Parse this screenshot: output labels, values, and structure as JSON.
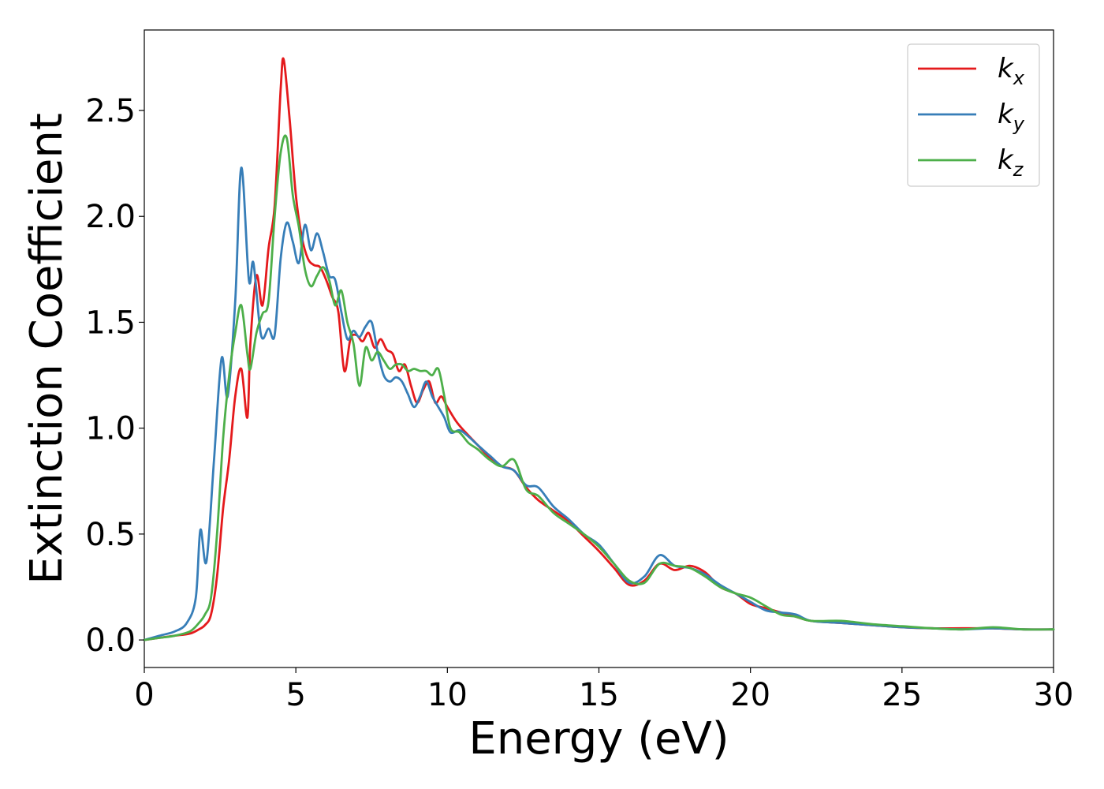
{
  "chart_data": {
    "type": "line",
    "xlabel": "Energy (eV)",
    "ylabel": "Extinction Coefficient",
    "xlim": [
      0,
      30
    ],
    "ylim": [
      -0.13,
      2.88
    ],
    "xticks": [
      0,
      5,
      10,
      15,
      20,
      25,
      30
    ],
    "xtick_labels": [
      "0",
      "5",
      "10",
      "15",
      "20",
      "25",
      "30"
    ],
    "yticks": [
      0.0,
      0.5,
      1.0,
      1.5,
      2.0,
      2.5
    ],
    "ytick_labels": [
      "0.0",
      "0.5",
      "1.0",
      "1.5",
      "2.0",
      "2.5"
    ],
    "grid": false,
    "legend_position": "top-right",
    "series": [
      {
        "name": "k_x",
        "label_main": "k",
        "label_sub": "x",
        "color": "#e41a1c",
        "x": [
          0,
          0.5,
          1.0,
          1.5,
          1.8,
          2.0,
          2.2,
          2.4,
          2.6,
          2.8,
          3.0,
          3.2,
          3.4,
          3.5,
          3.7,
          3.9,
          4.1,
          4.3,
          4.5,
          4.6,
          4.8,
          5.0,
          5.2,
          5.4,
          5.6,
          5.8,
          6.0,
          6.2,
          6.4,
          6.6,
          6.8,
          7.0,
          7.2,
          7.4,
          7.6,
          7.8,
          8.0,
          8.2,
          8.4,
          8.6,
          8.8,
          9.0,
          9.2,
          9.4,
          9.6,
          9.8,
          10.0,
          10.3,
          10.6,
          11.0,
          11.4,
          11.8,
          12.2,
          12.6,
          13.0,
          13.5,
          14.0,
          14.5,
          15.0,
          15.5,
          16.0,
          16.5,
          17.0,
          17.5,
          18.0,
          18.5,
          19.0,
          19.5,
          20.0,
          20.5,
          21.0,
          21.5,
          22.0,
          23.0,
          24.0,
          25.0,
          26.0,
          27.0,
          28.0,
          29.0,
          30.0
        ],
        "values": [
          0.0,
          0.01,
          0.02,
          0.03,
          0.05,
          0.07,
          0.12,
          0.3,
          0.62,
          0.85,
          1.15,
          1.28,
          1.05,
          1.4,
          1.72,
          1.58,
          1.85,
          2.05,
          2.6,
          2.74,
          2.45,
          2.1,
          1.9,
          1.8,
          1.77,
          1.76,
          1.7,
          1.62,
          1.55,
          1.27,
          1.42,
          1.44,
          1.41,
          1.45,
          1.38,
          1.42,
          1.37,
          1.35,
          1.27,
          1.3,
          1.2,
          1.12,
          1.18,
          1.22,
          1.12,
          1.15,
          1.1,
          1.03,
          0.98,
          0.92,
          0.86,
          0.82,
          0.8,
          0.72,
          0.66,
          0.61,
          0.56,
          0.49,
          0.42,
          0.34,
          0.26,
          0.28,
          0.36,
          0.33,
          0.35,
          0.32,
          0.25,
          0.22,
          0.17,
          0.15,
          0.13,
          0.11,
          0.09,
          0.08,
          0.07,
          0.06,
          0.055,
          0.055,
          0.055,
          0.05,
          0.05
        ]
      },
      {
        "name": "k_y",
        "label_main": "k",
        "label_sub": "y",
        "color": "#377eb8",
        "x": [
          0,
          0.5,
          1.0,
          1.4,
          1.7,
          1.85,
          2.05,
          2.3,
          2.55,
          2.75,
          3.0,
          3.2,
          3.45,
          3.6,
          3.85,
          4.1,
          4.3,
          4.5,
          4.7,
          4.9,
          5.1,
          5.3,
          5.5,
          5.7,
          5.9,
          6.1,
          6.3,
          6.5,
          6.7,
          6.9,
          7.1,
          7.3,
          7.5,
          7.7,
          7.9,
          8.1,
          8.3,
          8.5,
          8.7,
          8.9,
          9.1,
          9.3,
          9.5,
          9.7,
          9.9,
          10.1,
          10.4,
          10.7,
          11.0,
          11.4,
          11.8,
          12.2,
          12.6,
          13.0,
          13.5,
          14.0,
          14.5,
          15.0,
          15.5,
          16.0,
          16.5,
          17.0,
          17.5,
          18.0,
          18.5,
          19.0,
          19.5,
          20.0,
          20.5,
          21.0,
          21.5,
          22.0,
          23.0,
          24.0,
          25.0,
          26.0,
          27.0,
          28.0,
          29.0,
          30.0
        ],
        "values": [
          0.0,
          0.02,
          0.04,
          0.08,
          0.2,
          0.52,
          0.37,
          0.85,
          1.33,
          1.15,
          1.6,
          2.23,
          1.7,
          1.78,
          1.44,
          1.47,
          1.44,
          1.8,
          1.97,
          1.88,
          1.78,
          1.96,
          1.84,
          1.92,
          1.83,
          1.72,
          1.7,
          1.55,
          1.42,
          1.46,
          1.43,
          1.48,
          1.5,
          1.36,
          1.25,
          1.22,
          1.24,
          1.22,
          1.16,
          1.1,
          1.15,
          1.22,
          1.15,
          1.1,
          1.05,
          0.98,
          0.99,
          0.96,
          0.92,
          0.87,
          0.82,
          0.8,
          0.73,
          0.72,
          0.63,
          0.57,
          0.5,
          0.45,
          0.36,
          0.27,
          0.3,
          0.4,
          0.35,
          0.34,
          0.31,
          0.26,
          0.22,
          0.18,
          0.14,
          0.13,
          0.12,
          0.09,
          0.08,
          0.07,
          0.06,
          0.055,
          0.05,
          0.055,
          0.05,
          0.05
        ]
      },
      {
        "name": "k_z",
        "label_main": "k",
        "label_sub": "z",
        "color": "#4daf4a",
        "x": [
          0,
          0.5,
          1.0,
          1.5,
          1.8,
          2.0,
          2.2,
          2.4,
          2.6,
          2.8,
          3.0,
          3.2,
          3.4,
          3.5,
          3.7,
          3.9,
          4.1,
          4.3,
          4.5,
          4.7,
          4.9,
          5.1,
          5.3,
          5.5,
          5.7,
          5.9,
          6.1,
          6.3,
          6.5,
          6.7,
          6.9,
          7.1,
          7.3,
          7.5,
          7.7,
          7.9,
          8.1,
          8.3,
          8.5,
          8.7,
          8.9,
          9.1,
          9.3,
          9.5,
          9.7,
          9.9,
          10.1,
          10.4,
          10.7,
          11.0,
          11.4,
          11.8,
          12.2,
          12.6,
          13.0,
          13.5,
          14.0,
          14.5,
          15.0,
          15.5,
          16.0,
          16.5,
          17.0,
          17.5,
          18.0,
          18.5,
          19.0,
          19.5,
          20.0,
          20.5,
          21.0,
          21.5,
          22.0,
          23.0,
          24.0,
          25.0,
          26.0,
          27.0,
          28.0,
          29.0,
          30.0
        ],
        "values": [
          0.0,
          0.01,
          0.02,
          0.04,
          0.08,
          0.12,
          0.2,
          0.5,
          0.95,
          1.25,
          1.45,
          1.58,
          1.35,
          1.28,
          1.45,
          1.54,
          1.6,
          2.0,
          2.3,
          2.37,
          2.1,
          1.95,
          1.75,
          1.67,
          1.72,
          1.76,
          1.7,
          1.58,
          1.65,
          1.5,
          1.4,
          1.2,
          1.38,
          1.32,
          1.36,
          1.32,
          1.28,
          1.3,
          1.3,
          1.27,
          1.28,
          1.27,
          1.27,
          1.25,
          1.28,
          1.15,
          1.0,
          0.98,
          0.93,
          0.9,
          0.85,
          0.82,
          0.85,
          0.71,
          0.68,
          0.6,
          0.55,
          0.5,
          0.44,
          0.36,
          0.28,
          0.27,
          0.36,
          0.35,
          0.34,
          0.3,
          0.25,
          0.22,
          0.2,
          0.16,
          0.12,
          0.11,
          0.09,
          0.09,
          0.075,
          0.065,
          0.055,
          0.05,
          0.06,
          0.05,
          0.05
        ]
      }
    ]
  }
}
